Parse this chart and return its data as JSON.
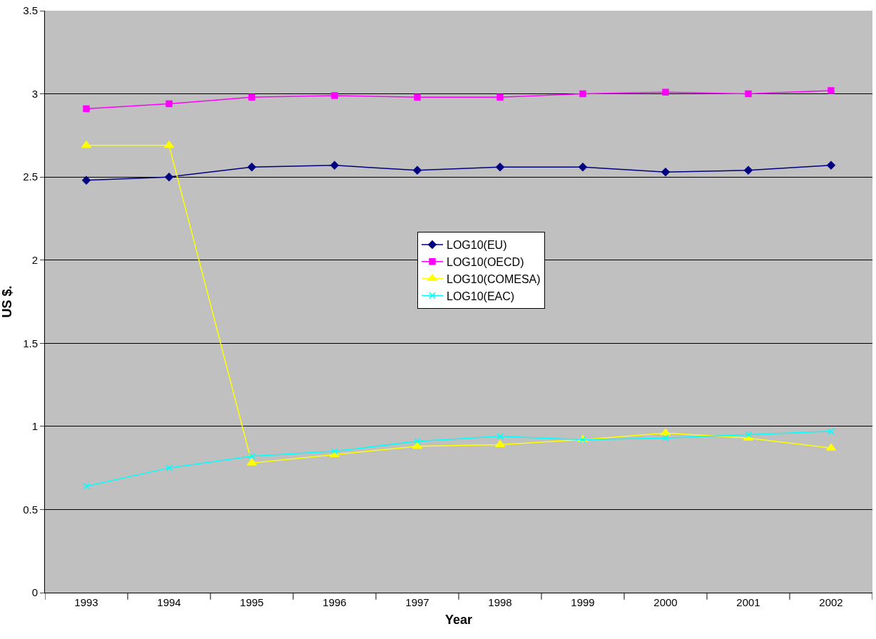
{
  "chart_data": {
    "type": "line",
    "xlabel": "Year",
    "ylabel": "US $.",
    "categories": [
      "1993",
      "1994",
      "1995",
      "1996",
      "1997",
      "1998",
      "1999",
      "2000",
      "2001",
      "2002"
    ],
    "series": [
      {
        "name": "LOG10(EU)",
        "color": "#000080",
        "marker": "diamond",
        "values": [
          2.48,
          2.5,
          2.56,
          2.57,
          2.54,
          2.56,
          2.56,
          2.53,
          2.54,
          2.57
        ]
      },
      {
        "name": "LOG10(OECD)",
        "color": "#ff00ff",
        "marker": "square",
        "values": [
          2.91,
          2.94,
          2.98,
          2.99,
          2.98,
          2.98,
          3.0,
          3.01,
          3.0,
          3.02
        ]
      },
      {
        "name": "LOG10(COMESA)",
        "color": "#ffff00",
        "marker": "triangle",
        "values": [
          2.69,
          2.69,
          0.78,
          0.83,
          0.88,
          0.89,
          0.92,
          0.96,
          0.93,
          0.87
        ]
      },
      {
        "name": "LOG10(EAC)",
        "color": "#00ffff",
        "marker": "cross",
        "values": [
          0.64,
          0.75,
          0.82,
          0.85,
          0.91,
          0.94,
          0.92,
          0.93,
          0.95,
          0.97
        ]
      }
    ],
    "ylim": [
      0,
      3.5
    ],
    "yticks": [
      0,
      0.5,
      1,
      1.5,
      2,
      2.5,
      3,
      3.5
    ],
    "grid": "y",
    "legend": "center",
    "line_style": "solid"
  }
}
